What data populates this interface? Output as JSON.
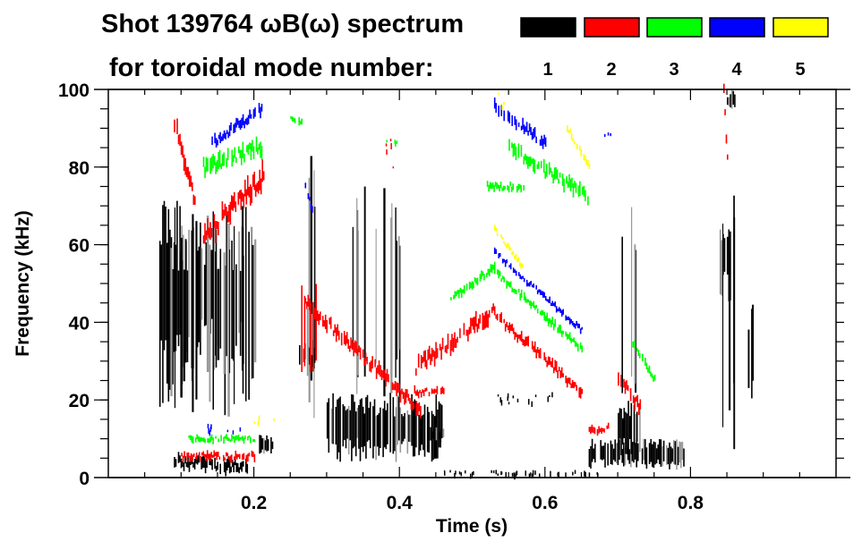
{
  "chart_data": {
    "type": "heatmap",
    "title_line1": "Shot 139764 ωB(ω) spectrum",
    "title_line2": "for toroidal mode number:",
    "xlabel": "Time (s)",
    "ylabel": "Frequency (kHz)",
    "xlim": [
      0.0,
      1.0
    ],
    "ylim": [
      0,
      100
    ],
    "x_ticks": [
      {
        "value": 0.2,
        "label": "0.2"
      },
      {
        "value": 0.4,
        "label": "0.4"
      },
      {
        "value": 0.6,
        "label": "0.6"
      },
      {
        "value": 0.8,
        "label": "0.8"
      }
    ],
    "x_minor_step": 0.05,
    "y_ticks": [
      {
        "value": 0,
        "label": "0"
      },
      {
        "value": 20,
        "label": "20"
      },
      {
        "value": 40,
        "label": "40"
      },
      {
        "value": 60,
        "label": "60"
      },
      {
        "value": 80,
        "label": "80"
      },
      {
        "value": 100,
        "label": "100"
      }
    ],
    "y_minor_step": 5,
    "legend": {
      "placement": "top-right",
      "entries": [
        {
          "mode": 1,
          "label": "1",
          "color": "#000000"
        },
        {
          "mode": 2,
          "label": "2",
          "color": "#ff0000"
        },
        {
          "mode": 3,
          "label": "3",
          "color": "#00ff00"
        },
        {
          "mode": 4,
          "label": "4",
          "color": "#0000ff"
        },
        {
          "mode": 5,
          "label": "5",
          "color": "#ffff00"
        }
      ]
    },
    "features": [
      {
        "mode": 1,
        "kind": "blob",
        "t": [
          0.07,
          0.1
        ],
        "f": [
          18,
          72
        ],
        "density": 0.9
      },
      {
        "mode": 1,
        "kind": "blob",
        "t": [
          0.1,
          0.2
        ],
        "f": [
          28,
          66
        ],
        "density": 0.5
      },
      {
        "mode": 1,
        "kind": "stripes",
        "t": [
          0.08,
          0.21
        ],
        "f": [
          15,
          70
        ],
        "n": 28
      },
      {
        "mode": 1,
        "kind": "chirp",
        "t0": 0.09,
        "t1": 0.19,
        "f0": 4,
        "f1": 3,
        "width": 2.5
      },
      {
        "mode": 1,
        "kind": "blob",
        "t": [
          0.205,
          0.225
        ],
        "f": [
          6,
          11
        ],
        "density": 0.9
      },
      {
        "mode": 1,
        "kind": "stripes",
        "t": [
          0.265,
          0.285
        ],
        "f": [
          8,
          92
        ],
        "n": 4
      },
      {
        "mode": 1,
        "kind": "blob",
        "t": [
          0.262,
          0.282
        ],
        "f": [
          28,
          36
        ],
        "density": 0.8
      },
      {
        "mode": 1,
        "kind": "blob",
        "t": [
          0.3,
          0.46
        ],
        "f": [
          4,
          22
        ],
        "density": 0.85
      },
      {
        "mode": 1,
        "kind": "stripes",
        "t": [
          0.32,
          0.4
        ],
        "f": [
          20,
          75
        ],
        "n": 14
      },
      {
        "mode": 1,
        "kind": "blob",
        "t": [
          0.44,
          0.46
        ],
        "f": [
          9,
          13
        ],
        "density": 0.7
      },
      {
        "mode": 1,
        "kind": "dots",
        "t": [
          0.46,
          0.68
        ],
        "f": [
          1,
          2
        ],
        "n": 40
      },
      {
        "mode": 1,
        "kind": "dots",
        "t": [
          0.52,
          0.62
        ],
        "f": [
          19,
          22
        ],
        "n": 14
      },
      {
        "mode": 1,
        "kind": "blob",
        "t": [
          0.66,
          0.79
        ],
        "f": [
          2,
          10
        ],
        "density": 0.8
      },
      {
        "mode": 1,
        "kind": "blob",
        "t": [
          0.7,
          0.73
        ],
        "f": [
          5,
          20
        ],
        "density": 0.85
      },
      {
        "mode": 1,
        "kind": "stripes",
        "t": [
          0.7,
          0.73
        ],
        "f": [
          20,
          70
        ],
        "n": 4
      },
      {
        "mode": 1,
        "kind": "blob",
        "t": [
          0.84,
          0.855
        ],
        "f": [
          45,
          68
        ],
        "density": 0.9
      },
      {
        "mode": 1,
        "kind": "stripes",
        "t": [
          0.84,
          0.86
        ],
        "f": [
          4,
          80
        ],
        "n": 4
      },
      {
        "mode": 1,
        "kind": "blob",
        "t": [
          0.85,
          0.86
        ],
        "f": [
          94,
          100
        ],
        "density": 0.9
      },
      {
        "mode": 1,
        "kind": "stripes",
        "t": [
          0.87,
          0.89
        ],
        "f": [
          20,
          45
        ],
        "n": 3
      },
      {
        "mode": 2,
        "kind": "chirp",
        "t0": 0.09,
        "t1": 0.12,
        "f0": 92,
        "f1": 70,
        "width": 3
      },
      {
        "mode": 2,
        "kind": "chirp",
        "t0": 0.13,
        "t1": 0.22,
        "f0": 62,
        "f1": 79,
        "width": 4
      },
      {
        "mode": 2,
        "kind": "chirp",
        "t0": 0.1,
        "t1": 0.2,
        "f0": 5.5,
        "f1": 5.5,
        "width": 1.5
      },
      {
        "mode": 2,
        "kind": "chirp",
        "t0": 0.27,
        "t1": 0.43,
        "f0": 45,
        "f1": 17,
        "width": 2.5
      },
      {
        "mode": 2,
        "kind": "blob",
        "t": [
          0.265,
          0.29
        ],
        "f": [
          25,
          50
        ],
        "density": 0.8
      },
      {
        "mode": 2,
        "kind": "chirp",
        "t0": 0.42,
        "t1": 0.53,
        "f0": 28,
        "f1": 43,
        "width": 3
      },
      {
        "mode": 2,
        "kind": "chirp",
        "t0": 0.53,
        "t1": 0.65,
        "f0": 42,
        "f1": 22,
        "width": 2
      },
      {
        "mode": 2,
        "kind": "chirp",
        "t0": 0.42,
        "t1": 0.46,
        "f0": 22,
        "f1": 22,
        "width": 1.5
      },
      {
        "mode": 2,
        "kind": "chirp",
        "t0": 0.66,
        "t1": 0.69,
        "f0": 12,
        "f1": 13,
        "width": 1.5
      },
      {
        "mode": 2,
        "kind": "chirp",
        "t0": 0.7,
        "t1": 0.73,
        "f0": 26,
        "f1": 18,
        "width": 2.5
      },
      {
        "mode": 2,
        "kind": "chirp",
        "t0": 0.845,
        "t1": 0.85,
        "f0": 100,
        "f1": 82,
        "width": 2
      },
      {
        "mode": 2,
        "kind": "dots",
        "t": [
          0.38,
          0.4
        ],
        "f": [
          80,
          92
        ],
        "n": 5
      },
      {
        "mode": 3,
        "kind": "chirp",
        "t0": 0.13,
        "t1": 0.21,
        "f0": 80,
        "f1": 85,
        "width": 3
      },
      {
        "mode": 3,
        "kind": "chirp",
        "t0": 0.11,
        "t1": 0.2,
        "f0": 10,
        "f1": 10,
        "width": 1.2
      },
      {
        "mode": 3,
        "kind": "chirp",
        "t0": 0.25,
        "t1": 0.265,
        "f0": 92,
        "f1": 91,
        "width": 1.5
      },
      {
        "mode": 3,
        "kind": "chirp",
        "t0": 0.47,
        "t1": 0.53,
        "f0": 46,
        "f1": 54,
        "width": 1.5
      },
      {
        "mode": 3,
        "kind": "chirp",
        "t0": 0.53,
        "t1": 0.65,
        "f0": 53,
        "f1": 33,
        "width": 1.5
      },
      {
        "mode": 3,
        "kind": "chirp",
        "t0": 0.55,
        "t1": 0.66,
        "f0": 85,
        "f1": 72,
        "width": 2.5
      },
      {
        "mode": 3,
        "kind": "chirp",
        "t0": 0.52,
        "t1": 0.57,
        "f0": 75,
        "f1": 75,
        "width": 1.5
      },
      {
        "mode": 3,
        "kind": "chirp",
        "t0": 0.72,
        "t1": 0.75,
        "f0": 35,
        "f1": 25,
        "width": 1.5
      },
      {
        "mode": 3,
        "kind": "dots",
        "t": [
          0.38,
          0.4
        ],
        "f": [
          85,
          88
        ],
        "n": 4
      },
      {
        "mode": 4,
        "kind": "chirp",
        "t0": 0.14,
        "t1": 0.21,
        "f0": 86,
        "f1": 95,
        "width": 2
      },
      {
        "mode": 4,
        "kind": "chirp",
        "t0": 0.53,
        "t1": 0.6,
        "f0": 96,
        "f1": 86,
        "width": 2
      },
      {
        "mode": 4,
        "kind": "chirp",
        "t0": 0.53,
        "t1": 0.65,
        "f0": 58,
        "f1": 38,
        "width": 1.2
      },
      {
        "mode": 4,
        "kind": "dots",
        "t": [
          0.11,
          0.2
        ],
        "f": [
          12,
          14
        ],
        "n": 8
      },
      {
        "mode": 4,
        "kind": "dots",
        "t": [
          0.68,
          0.69
        ],
        "f": [
          87,
          89
        ],
        "n": 3
      },
      {
        "mode": 4,
        "kind": "chirp",
        "t0": 0.27,
        "t1": 0.285,
        "f0": 75,
        "f1": 66,
        "width": 1.2
      },
      {
        "mode": 5,
        "kind": "chirp",
        "t0": 0.53,
        "t1": 0.57,
        "f0": 64,
        "f1": 54,
        "width": 1
      },
      {
        "mode": 5,
        "kind": "chirp",
        "t0": 0.63,
        "t1": 0.66,
        "f0": 90,
        "f1": 80,
        "width": 1.2
      },
      {
        "mode": 5,
        "kind": "dots",
        "t": [
          0.53,
          0.55
        ],
        "f": [
          95,
          100
        ],
        "n": 4
      },
      {
        "mode": 5,
        "kind": "dots",
        "t": [
          0.18,
          0.23
        ],
        "f": [
          14,
          16
        ],
        "n": 4
      }
    ]
  }
}
